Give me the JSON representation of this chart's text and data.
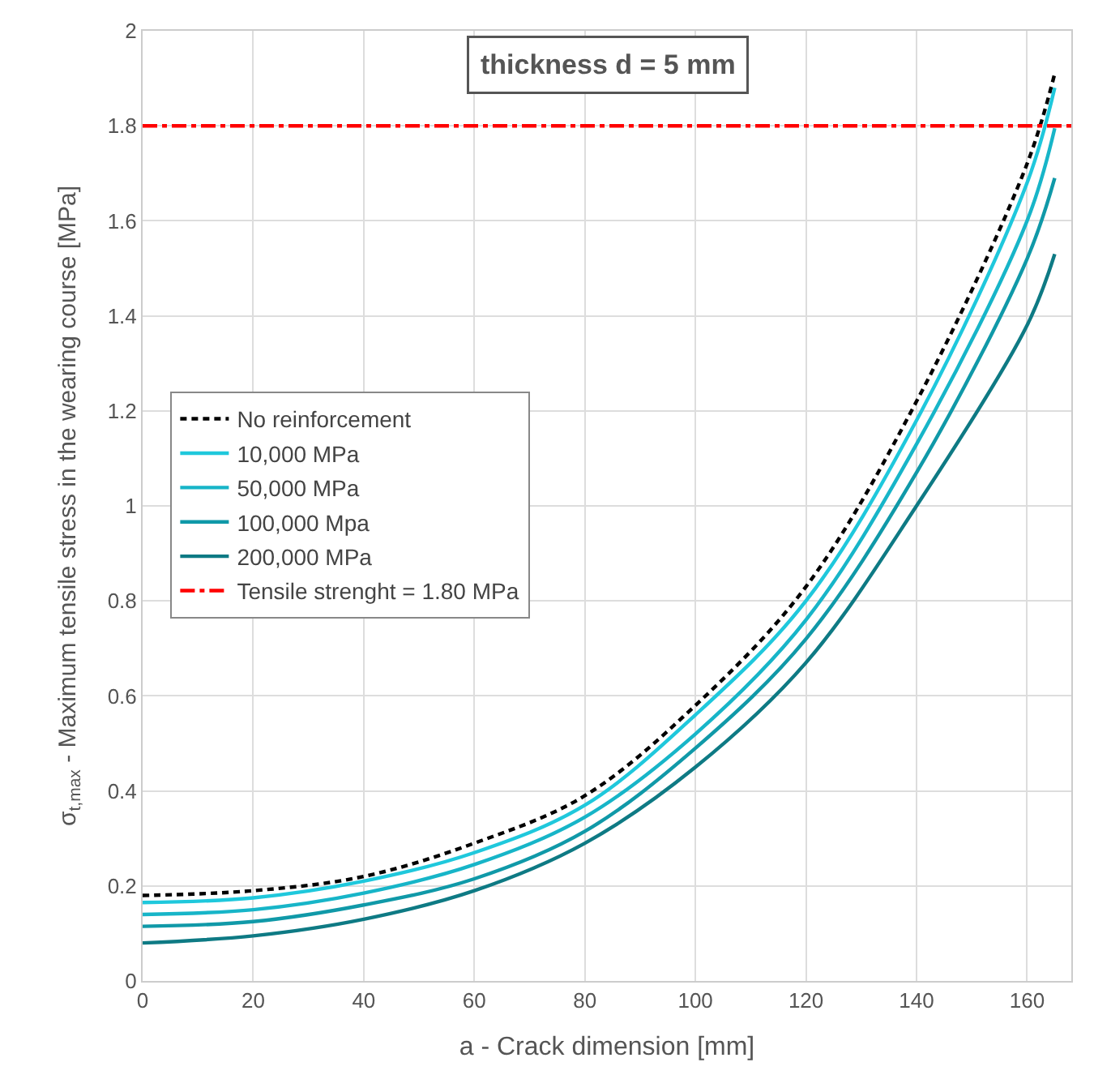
{
  "chart_data": {
    "type": "line",
    "xlabel": "a - Crack dimension [mm]",
    "ylabel": "σ$_{t,max}$ - Maximum tensile stress in the wearing course [MPa]",
    "annotations": [
      "thickness d = 5 mm"
    ],
    "x": [
      0,
      20,
      40,
      60,
      80,
      100,
      120,
      140,
      160,
      165
    ],
    "series": [
      {
        "name": "No reinforcement",
        "color": "#000000",
        "line_style": "dashed",
        "values": [
          0.18,
          0.19,
          0.22,
          0.29,
          0.39,
          0.58,
          0.83,
          1.22,
          1.72,
          1.91
        ]
      },
      {
        "name": "10,000 MPa",
        "color": "#1fc8dc",
        "values": [
          0.165,
          0.175,
          0.21,
          0.27,
          0.37,
          0.56,
          0.8,
          1.18,
          1.68,
          1.88
        ]
      },
      {
        "name": "50,000 MPa",
        "color": "#17b5c8",
        "values": [
          0.14,
          0.15,
          0.185,
          0.245,
          0.345,
          0.52,
          0.76,
          1.13,
          1.6,
          1.795
        ]
      },
      {
        "name": "100,000 Mpa",
        "color": "#1099a8",
        "values": [
          0.115,
          0.125,
          0.16,
          0.215,
          0.315,
          0.49,
          0.72,
          1.07,
          1.52,
          1.69
        ]
      },
      {
        "name": "200,000 MPa",
        "color": "#0e7a84",
        "values": [
          0.08,
          0.095,
          0.13,
          0.19,
          0.29,
          0.45,
          0.67,
          1.0,
          1.38,
          1.53
        ]
      }
    ],
    "ref_lines": [
      {
        "axis": "y",
        "value": 1.8,
        "label": "Tensile strenght = 1.80 MPa",
        "color": "#ff0000",
        "line_style": "dashdot"
      }
    ],
    "xlim": [
      0,
      168
    ],
    "xticks": [
      0,
      20,
      40,
      60,
      80,
      100,
      120,
      140,
      160
    ],
    "ylim": [
      0,
      2
    ],
    "yticks": [
      0,
      0.2,
      0.4,
      0.6,
      0.8,
      1,
      1.2,
      1.4,
      1.6,
      1.8,
      2
    ],
    "grid": true,
    "legend": "left",
    "marker": "none",
    "line_style": "solid"
  }
}
